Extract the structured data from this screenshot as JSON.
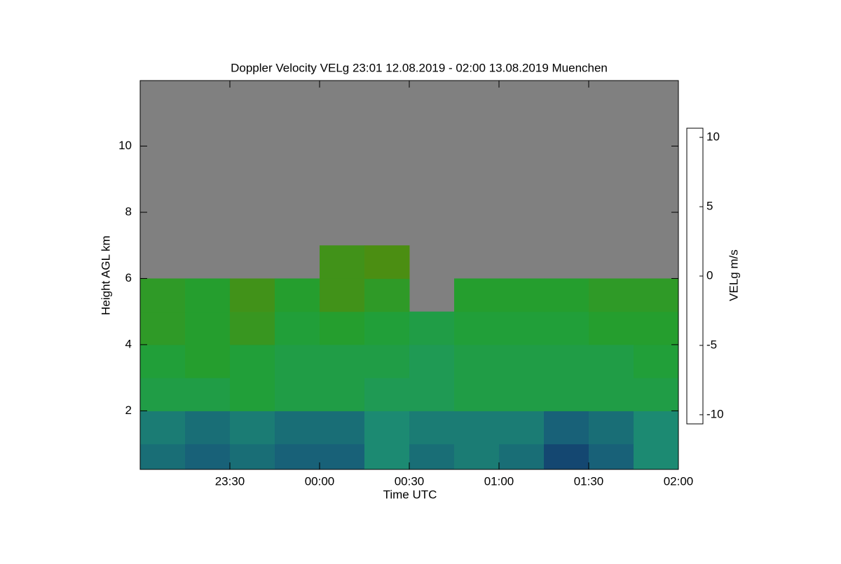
{
  "chart_data": {
    "type": "heatmap",
    "title": "Doppler Velocity VELg   23:01 12.08.2019 - 02:00 13.08.2019 Muenchen",
    "x_label": "Time UTC",
    "y_label": "Height AGL km",
    "colorbar_label": "VELg m/s",
    "xbins": [
      23,
      23.25,
      23.5,
      23.75,
      24,
      24.25,
      24.5,
      24.75,
      25,
      25.25,
      25.5,
      25.75,
      26
    ],
    "ybins": [
      0.23,
      1,
      2,
      3,
      4,
      5,
      6,
      7,
      11.98
    ],
    "z": [
      [
        -5,
        -5.5,
        -5,
        -5.5,
        -5.5,
        -4,
        -5,
        -4.5,
        -5,
        -6.5,
        -5.5,
        -4
      ],
      [
        -4.5,
        -5,
        -4.5,
        -5,
        -5,
        -4,
        -4.5,
        -4.5,
        -4.5,
        -5.5,
        -5,
        -4
      ],
      [
        -2,
        -2,
        -1.5,
        -2,
        -2,
        -2.5,
        -2.5,
        -2,
        -2,
        -2,
        -2,
        -2
      ],
      [
        -1.5,
        -1,
        -1.5,
        -2,
        -2,
        -2,
        -2.5,
        -2,
        -2,
        -2,
        -2,
        -1.5
      ],
      [
        -0.5,
        -1,
        0,
        -1.5,
        -1,
        -1.5,
        -2,
        -1.5,
        -1.5,
        -1.5,
        -1,
        -1
      ],
      [
        -0.5,
        -1,
        0.5,
        -1,
        0.5,
        -0.5,
        null,
        -1,
        -1,
        -1,
        -0.5,
        -0.5
      ],
      [
        null,
        null,
        null,
        null,
        0.5,
        1,
        null,
        null,
        null,
        null,
        null,
        null
      ],
      [
        null,
        null,
        null,
        null,
        null,
        null,
        null,
        null,
        null,
        null,
        null,
        null
      ]
    ],
    "xlim": [
      23,
      26
    ],
    "xticks": [
      {
        "value": 23.5,
        "label": "23:30"
      },
      {
        "value": 24,
        "label": "00:00"
      },
      {
        "value": 24.5,
        "label": "00:30"
      },
      {
        "value": 25,
        "label": "01:00"
      },
      {
        "value": 25.5,
        "label": "01:30"
      },
      {
        "value": 26,
        "label": "02:00"
      }
    ],
    "ylim": [
      0.23,
      11.98
    ],
    "yticks": [
      2,
      4,
      6,
      8,
      10
    ],
    "zlim": [
      -10.66,
      10.66
    ],
    "zticks": [
      -10,
      -5,
      0,
      5,
      10
    ],
    "colormap": [
      "#000000",
      "#0b1d55",
      "#17557a",
      "#1d9670",
      "#22a030",
      "#4e8c10",
      "#c02a00",
      "#dc6a00",
      "#f0c000",
      "#ffff00"
    ],
    "null_color": "#808080"
  }
}
